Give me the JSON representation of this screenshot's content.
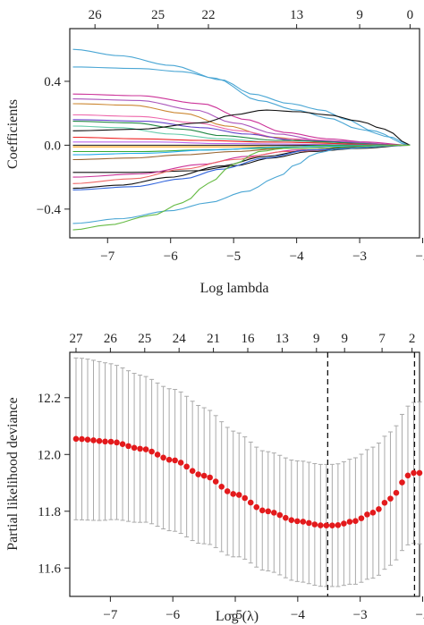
{
  "chart_data": [
    {
      "type": "line",
      "xlabel": "Log lambda",
      "ylabel": "Coefficients",
      "xlim": [
        -7.6,
        -2.05
      ],
      "ylim": [
        -0.58,
        0.73
      ],
      "x_ticks": [
        -7,
        -6,
        -5,
        -4,
        -3,
        -2
      ],
      "x_tick_labels": [
        "−7",
        "−6",
        "−5",
        "−4",
        "−3",
        "−2"
      ],
      "y_ticks": [
        0.4,
        0.0,
        -0.4
      ],
      "y_tick_labels": [
        "0.4",
        "0.0",
        "−0.4"
      ],
      "top_axis_positions": [
        -7.2,
        -6.2,
        -5.4,
        -4.0,
        -3.0,
        -2.2
      ],
      "top_axis_labels": [
        "26",
        "25",
        "22",
        "13",
        "9",
        "0"
      ],
      "x_end": -2.2,
      "paths": [
        {
          "color": "#4aa6d4",
          "points": [
            [
              -7.55,
              0.6
            ],
            [
              -6.8,
              0.56
            ],
            [
              -6.0,
              0.5
            ],
            [
              -5.2,
              0.41
            ],
            [
              -4.7,
              0.32
            ],
            [
              -4.1,
              0.26
            ],
            [
              -3.6,
              0.22
            ],
            [
              -3.2,
              0.16
            ],
            [
              -2.8,
              0.09
            ],
            [
              -2.2,
              0.0
            ]
          ]
        },
        {
          "color": "#4aa6d4",
          "points": [
            [
              -7.55,
              0.49
            ],
            [
              -6.5,
              0.48
            ],
            [
              -5.8,
              0.46
            ],
            [
              -5.3,
              0.42
            ],
            [
              -4.6,
              0.28
            ],
            [
              -4.0,
              0.22
            ],
            [
              -3.5,
              0.17
            ],
            [
              -3.0,
              0.1
            ],
            [
              -2.5,
              0.05
            ],
            [
              -2.2,
              0.0
            ]
          ]
        },
        {
          "color": "#cc3399",
          "points": [
            [
              -7.55,
              0.32
            ],
            [
              -6.5,
              0.31
            ],
            [
              -5.5,
              0.26
            ],
            [
              -4.8,
              0.16
            ],
            [
              -4.2,
              0.08
            ],
            [
              -3.5,
              0.04
            ],
            [
              -2.9,
              0.02
            ],
            [
              -2.2,
              0.0
            ]
          ]
        },
        {
          "color": "#aa55bb",
          "points": [
            [
              -7.55,
              0.29
            ],
            [
              -6.5,
              0.28
            ],
            [
              -5.6,
              0.22
            ],
            [
              -5.0,
              0.14
            ],
            [
              -4.3,
              0.07
            ],
            [
              -3.6,
              0.03
            ],
            [
              -2.2,
              0.0
            ]
          ]
        },
        {
          "color": "#cc8833",
          "points": [
            [
              -7.55,
              0.26
            ],
            [
              -6.6,
              0.25
            ],
            [
              -5.8,
              0.2
            ],
            [
              -5.1,
              0.12
            ],
            [
              -4.4,
              0.05
            ],
            [
              -3.6,
              0.02
            ],
            [
              -2.2,
              0.0
            ]
          ]
        },
        {
          "color": "#ee66aa",
          "points": [
            [
              -7.55,
              0.19
            ],
            [
              -6.5,
              0.18
            ],
            [
              -5.6,
              0.14
            ],
            [
              -4.9,
              0.09
            ],
            [
              -4.2,
              0.04
            ],
            [
              -2.2,
              0.0
            ]
          ]
        },
        {
          "color": "#6644cc",
          "points": [
            [
              -7.55,
              0.16
            ],
            [
              -6.4,
              0.15
            ],
            [
              -5.5,
              0.11
            ],
            [
              -4.8,
              0.07
            ],
            [
              -4.0,
              0.03
            ],
            [
              -2.2,
              0.0
            ]
          ]
        },
        {
          "color": "#228844",
          "points": [
            [
              -7.55,
              0.15
            ],
            [
              -6.6,
              0.14
            ],
            [
              -5.8,
              0.1
            ],
            [
              -5.2,
              0.06
            ],
            [
              -4.3,
              0.03
            ],
            [
              -2.2,
              0.0
            ]
          ]
        },
        {
          "color": "#66ccaa",
          "points": [
            [
              -7.55,
              0.12
            ],
            [
              -6.8,
              0.11
            ],
            [
              -6.0,
              0.07
            ],
            [
              -5.2,
              0.04
            ],
            [
              -4.4,
              0.02
            ],
            [
              -2.2,
              0.0
            ]
          ]
        },
        {
          "color": "#111111",
          "points": [
            [
              -7.55,
              0.09
            ],
            [
              -6.5,
              0.1
            ],
            [
              -5.5,
              0.14
            ],
            [
              -5.0,
              0.19
            ],
            [
              -4.5,
              0.22
            ],
            [
              -4.0,
              0.21
            ],
            [
              -3.5,
              0.19
            ],
            [
              -3.0,
              0.15
            ],
            [
              -2.6,
              0.1
            ],
            [
              -2.2,
              0.0
            ]
          ]
        },
        {
          "color": "#ee2222",
          "points": [
            [
              -7.55,
              0.05
            ],
            [
              -6.5,
              0.04
            ],
            [
              -5.5,
              0.03
            ],
            [
              -4.5,
              0.02
            ],
            [
              -2.2,
              0.0
            ]
          ]
        },
        {
          "color": "#bb66ee",
          "points": [
            [
              -7.55,
              0.02
            ],
            [
              -6.2,
              0.02
            ],
            [
              -5.2,
              0.01
            ],
            [
              -2.2,
              0.0
            ]
          ]
        },
        {
          "color": "#333333",
          "points": [
            [
              -7.55,
              0.0
            ],
            [
              -6.0,
              0.0
            ],
            [
              -4.5,
              0.0
            ],
            [
              -2.2,
              0.0
            ]
          ]
        },
        {
          "color": "#ff9900",
          "points": [
            [
              -7.55,
              -0.01
            ],
            [
              -6.2,
              -0.01
            ],
            [
              -5.0,
              -0.01
            ],
            [
              -2.2,
              0.0
            ]
          ]
        },
        {
          "color": "#33aa33",
          "points": [
            [
              -7.55,
              -0.04
            ],
            [
              -6.5,
              -0.04
            ],
            [
              -5.5,
              -0.03
            ],
            [
              -4.5,
              -0.02
            ],
            [
              -3.5,
              0.0
            ],
            [
              -2.2,
              0.0
            ]
          ]
        },
        {
          "color": "#22aaee",
          "points": [
            [
              -7.55,
              -0.06
            ],
            [
              -6.4,
              -0.05
            ],
            [
              -5.4,
              -0.03
            ],
            [
              -4.2,
              -0.01
            ],
            [
              -2.2,
              0.0
            ]
          ]
        },
        {
          "color": "#996633",
          "points": [
            [
              -7.55,
              -0.09
            ],
            [
              -6.6,
              -0.08
            ],
            [
              -5.8,
              -0.06
            ],
            [
              -5.0,
              -0.04
            ],
            [
              -4.2,
              -0.02
            ],
            [
              -2.2,
              0.0
            ]
          ]
        },
        {
          "color": "#111111",
          "points": [
            [
              -7.55,
              -0.17
            ],
            [
              -6.6,
              -0.17
            ],
            [
              -5.6,
              -0.16
            ],
            [
              -5.0,
              -0.13
            ],
            [
              -4.4,
              -0.08
            ],
            [
              -3.8,
              -0.04
            ],
            [
              -3.0,
              -0.02
            ],
            [
              -2.2,
              0.0
            ]
          ]
        },
        {
          "color": "#cc3399",
          "points": [
            [
              -7.55,
              -0.2
            ],
            [
              -6.5,
              -0.18
            ],
            [
              -5.5,
              -0.12
            ],
            [
              -4.8,
              -0.07
            ],
            [
              -4.0,
              -0.03
            ],
            [
              -2.2,
              0.0
            ]
          ]
        },
        {
          "color": "#ee6666",
          "points": [
            [
              -7.55,
              -0.24
            ],
            [
              -6.6,
              -0.21
            ],
            [
              -5.8,
              -0.15
            ],
            [
              -5.0,
              -0.09
            ],
            [
              -4.2,
              -0.04
            ],
            [
              -2.2,
              0.0
            ]
          ]
        },
        {
          "color": "#111111",
          "points": [
            [
              -7.55,
              -0.27
            ],
            [
              -6.8,
              -0.25
            ],
            [
              -6.0,
              -0.2
            ],
            [
              -5.2,
              -0.13
            ],
            [
              -4.5,
              -0.07
            ],
            [
              -3.8,
              -0.03
            ],
            [
              -3.0,
              -0.01
            ],
            [
              -2.2,
              0.0
            ]
          ]
        },
        {
          "color": "#3366dd",
          "points": [
            [
              -7.55,
              -0.28
            ],
            [
              -6.6,
              -0.26
            ],
            [
              -5.8,
              -0.21
            ],
            [
              -5.2,
              -0.15
            ],
            [
              -4.5,
              -0.08
            ],
            [
              -3.8,
              -0.03
            ],
            [
              -2.2,
              0.0
            ]
          ]
        },
        {
          "color": "#4aa6d4",
          "points": [
            [
              -7.55,
              -0.49
            ],
            [
              -6.8,
              -0.46
            ],
            [
              -6.0,
              -0.41
            ],
            [
              -5.4,
              -0.36
            ],
            [
              -4.8,
              -0.29
            ],
            [
              -4.3,
              -0.2
            ],
            [
              -4.0,
              -0.12
            ],
            [
              -3.7,
              -0.05
            ],
            [
              -3.3,
              -0.02
            ],
            [
              -2.2,
              0.0
            ]
          ]
        },
        {
          "color": "#66bb44",
          "points": [
            [
              -7.55,
              -0.53
            ],
            [
              -7.0,
              -0.5
            ],
            [
              -6.3,
              -0.44
            ],
            [
              -5.8,
              -0.36
            ],
            [
              -5.4,
              -0.24
            ],
            [
              -5.0,
              -0.12
            ],
            [
              -4.6,
              -0.04
            ],
            [
              -4.2,
              -0.02
            ],
            [
              -2.2,
              0.0
            ]
          ]
        }
      ]
    },
    {
      "type": "scatter",
      "xlabel": "Log (λ)",
      "ylabel": "Partial likelihood deviance",
      "xlim": [
        -7.65,
        -2.05
      ],
      "ylim": [
        11.5,
        12.36
      ],
      "x_ticks": [
        -7,
        -6,
        -5,
        -4,
        -3,
        -2
      ],
      "x_tick_labels": [
        "−7",
        "−6",
        "−5",
        "−4",
        "−3",
        "−2"
      ],
      "y_ticks": [
        11.6,
        11.8,
        12.0,
        12.2
      ],
      "y_tick_labels": [
        "11.6",
        "11.8",
        "12.0",
        "12.2"
      ],
      "top_axis_positions": [
        -7.55,
        -7.0,
        -6.45,
        -5.9,
        -5.35,
        -4.8,
        -4.25,
        -3.7,
        -3.25,
        -2.65,
        -2.17
      ],
      "top_axis_labels": [
        "27",
        "26",
        "25",
        "24",
        "21",
        "16",
        "13",
        "9",
        "9",
        "7",
        "2"
      ],
      "x_start": -7.55,
      "x_end": -2.05,
      "n_points": 60,
      "points_color": "#e31a1c",
      "error_bar_color": "#aaaaaa",
      "deviance_knots": [
        [
          -7.55,
          12.055
        ],
        [
          -7.0,
          12.045
        ],
        [
          -6.5,
          12.02
        ],
        [
          -6.0,
          11.98
        ],
        [
          -5.5,
          11.925
        ],
        [
          -5.0,
          11.86
        ],
        [
          -4.5,
          11.8
        ],
        [
          -4.0,
          11.765
        ],
        [
          -3.6,
          11.75
        ],
        [
          -3.4,
          11.75
        ],
        [
          -3.1,
          11.765
        ],
        [
          -2.8,
          11.795
        ],
        [
          -2.5,
          11.845
        ],
        [
          -2.3,
          11.905
        ],
        [
          -2.2,
          11.935
        ],
        [
          -2.05,
          11.935
        ]
      ],
      "half_width_knots": [
        [
          -7.55,
          0.285
        ],
        [
          -6.0,
          0.25
        ],
        [
          -4.5,
          0.21
        ],
        [
          -3.5,
          0.215
        ],
        [
          -2.5,
          0.235
        ],
        [
          -2.05,
          0.25
        ]
      ],
      "vlines": [
        -3.52,
        -2.13
      ]
    }
  ]
}
